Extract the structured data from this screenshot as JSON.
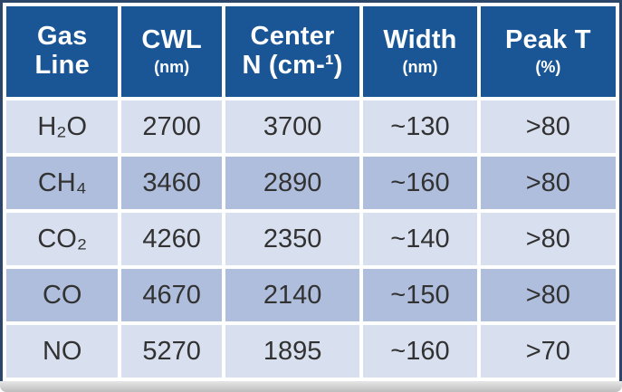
{
  "table": {
    "headers": [
      {
        "line1": "Gas",
        "line2": "Line"
      },
      {
        "line1": "CWL",
        "line2": "(nm)"
      },
      {
        "line1": "Center",
        "line2": "N (cm-¹)"
      },
      {
        "line1": "Width",
        "line2": "(nm)"
      },
      {
        "line1": "Peak T",
        "line2": "(%)"
      }
    ],
    "rows": [
      [
        "H₂O",
        "2700",
        "3700",
        "~130",
        ">80"
      ],
      [
        "CH₄",
        "3460",
        "2890",
        "~160",
        ">80"
      ],
      [
        "CO₂",
        "4260",
        "2350",
        "~140",
        ">80"
      ],
      [
        "CO",
        "4670",
        "2140",
        "~150",
        ">80"
      ],
      [
        "NO",
        "5270",
        "1895",
        "~160",
        ">70"
      ]
    ],
    "colors": {
      "header_bg": "#1A5696",
      "row_light": "#D8DFEE",
      "row_dark": "#AFBEDC",
      "border": "#2B4668",
      "gutter": "#FFFFFF",
      "text": "#323232",
      "shadow_light": "#E6E6E6",
      "shadow_dark": "#BDBDBD"
    }
  }
}
